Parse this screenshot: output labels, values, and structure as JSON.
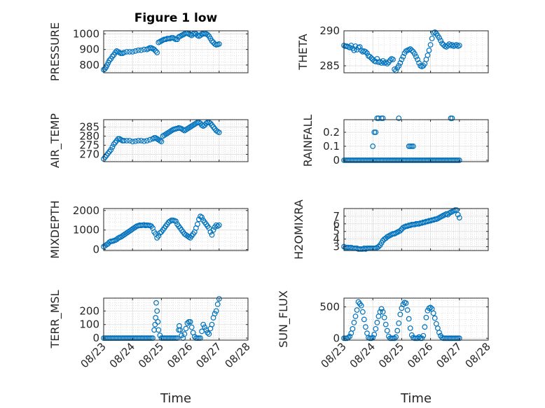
{
  "figure": {
    "title": "Figure 1 low",
    "marker_color": "#0072bd",
    "x_tick_labels": [
      "08/23",
      "08/24",
      "08/25",
      "08/26",
      "08/27",
      "08/28"
    ],
    "x_axis_label": "Time"
  },
  "chart_data": [
    {
      "type": "scatter",
      "ylabel": "PRESSURE",
      "xlim": [
        0,
        5
      ],
      "ylim": [
        750,
        1020
      ],
      "yticks": [
        800,
        900,
        1000
      ],
      "grid": true,
      "x": [
        0.0,
        0.04,
        0.08,
        0.12,
        0.16,
        0.2,
        0.25,
        0.3,
        0.35,
        0.4,
        0.45,
        0.5,
        0.55,
        0.6,
        0.65,
        0.7,
        0.8,
        0.9,
        1.0,
        1.1,
        1.2,
        1.3,
        1.4,
        1.5,
        1.55,
        1.6,
        1.65,
        1.7,
        1.75,
        1.8,
        1.85,
        1.9,
        1.95,
        2.0,
        2.05,
        2.1,
        2.15,
        2.2,
        2.25,
        2.3,
        2.35,
        2.4,
        2.45,
        2.5,
        2.55,
        2.6,
        2.65,
        2.7,
        2.75,
        2.8,
        2.85,
        2.9,
        2.95,
        3.0,
        3.05,
        3.1,
        3.15,
        3.2,
        3.25,
        3.3,
        3.35,
        3.4,
        3.45,
        3.5,
        3.55,
        3.6,
        3.65,
        3.7,
        3.75,
        3.8,
        3.85,
        3.9,
        3.95,
        4.0
      ],
      "y": [
        770,
        775,
        785,
        800,
        815,
        830,
        840,
        855,
        865,
        880,
        890,
        885,
        880,
        875,
        875,
        880,
        885,
        885,
        885,
        890,
        895,
        895,
        900,
        900,
        905,
        910,
        910,
        905,
        900,
        890,
        880,
        945,
        950,
        955,
        960,
        965,
        965,
        970,
        970,
        970,
        975,
        975,
        970,
        965,
        965,
        980,
        985,
        990,
        995,
        1000,
        1005,
        1005,
        1000,
        995,
        990,
        1000,
        1005,
        1000,
        990,
        985,
        990,
        1000,
        1000,
        1005,
        1000,
        995,
        985,
        970,
        955,
        945,
        935,
        930,
        932,
        935
      ]
    },
    {
      "type": "scatter",
      "ylabel": "THETA",
      "xlim": [
        0,
        5
      ],
      "ylim": [
        284,
        290
      ],
      "yticks": [
        285,
        290
      ],
      "grid": true,
      "x": [
        0.0,
        0.05,
        0.1,
        0.15,
        0.2,
        0.25,
        0.3,
        0.35,
        0.4,
        0.45,
        0.5,
        0.55,
        0.6,
        0.65,
        0.7,
        0.75,
        0.8,
        0.85,
        0.9,
        0.95,
        1.0,
        1.05,
        1.1,
        1.15,
        1.2,
        1.25,
        1.3,
        1.35,
        1.4,
        1.45,
        1.5,
        1.55,
        1.6,
        1.65,
        1.7,
        1.75,
        1.8,
        1.85,
        1.9,
        1.95,
        2.0,
        2.05,
        2.1,
        2.15,
        2.2,
        2.25,
        2.3,
        2.35,
        2.4,
        2.45,
        2.5,
        2.55,
        2.6,
        2.65,
        2.7,
        2.75,
        2.8,
        2.85,
        2.9,
        2.95,
        3.0,
        3.05,
        3.1,
        3.15,
        3.2,
        3.25,
        3.3,
        3.35,
        3.4,
        3.45,
        3.5,
        3.55,
        3.6,
        3.65,
        3.7,
        3.75,
        3.8,
        3.85,
        3.9,
        3.95,
        4.0
      ],
      "y": [
        287.9,
        287.8,
        287.8,
        287.7,
        287.6,
        287.9,
        287.5,
        287.2,
        287.8,
        287.3,
        287.6,
        287.7,
        287.2,
        287.0,
        287.1,
        287.0,
        286.8,
        286.4,
        286.3,
        286.1,
        285.9,
        285.7,
        285.6,
        286.0,
        285.5,
        285.6,
        285.4,
        285.7,
        285.4,
        285.5,
        285.3,
        285.5,
        285.8,
        286.0,
        285.9,
        284.5,
        284.3,
        284.7,
        285.0,
        285.4,
        285.9,
        286.3,
        286.8,
        287.1,
        287.2,
        287.3,
        287.4,
        287.2,
        287.0,
        286.7,
        286.3,
        285.9,
        285.4,
        285.0,
        284.9,
        285.0,
        285.3,
        285.9,
        286.5,
        287.2,
        288.0,
        288.9,
        289.7,
        289.8,
        289.6,
        289.3,
        289.0,
        288.6,
        288.2,
        288.0,
        287.8,
        287.7,
        287.9,
        288.1,
        287.9,
        288.0,
        287.8,
        287.9,
        288.0,
        287.8,
        287.9
      ]
    },
    {
      "type": "scatter",
      "ylabel": "AIR_TEMP",
      "xlim": [
        0,
        5
      ],
      "ylim": [
        266,
        289
      ],
      "yticks": [
        270,
        275,
        280,
        285
      ],
      "grid": true,
      "x": [
        0.0,
        0.05,
        0.1,
        0.15,
        0.2,
        0.25,
        0.3,
        0.35,
        0.4,
        0.45,
        0.5,
        0.55,
        0.6,
        0.65,
        0.7,
        0.8,
        0.9,
        1.0,
        1.1,
        1.2,
        1.3,
        1.4,
        1.5,
        1.6,
        1.7,
        1.75,
        1.8,
        1.85,
        1.9,
        1.95,
        2.0,
        2.05,
        2.1,
        2.15,
        2.2,
        2.25,
        2.3,
        2.35,
        2.4,
        2.45,
        2.5,
        2.55,
        2.6,
        2.65,
        2.7,
        2.75,
        2.8,
        2.85,
        2.9,
        2.95,
        3.0,
        3.05,
        3.1,
        3.15,
        3.2,
        3.25,
        3.3,
        3.35,
        3.4,
        3.45,
        3.5,
        3.55,
        3.6,
        3.65,
        3.7,
        3.75,
        3.8,
        3.85,
        3.9,
        3.95,
        4.0
      ],
      "y": [
        267.5,
        268.5,
        269.5,
        270.5,
        271.5,
        272.5,
        274,
        275.5,
        276.5,
        277.5,
        278.5,
        278.5,
        278,
        277.5,
        277.5,
        277.5,
        277.5,
        277,
        277.2,
        277.5,
        277.5,
        277.2,
        277.5,
        278,
        278.5,
        279,
        279,
        278.5,
        278,
        277.5,
        277,
        280,
        280.5,
        281,
        281.5,
        282,
        282.5,
        283,
        283.5,
        283.8,
        284,
        284.2,
        284.5,
        284.3,
        284,
        283.5,
        283,
        283.5,
        284,
        284.5,
        285,
        285.5,
        286,
        286.5,
        287,
        287.5,
        287.5,
        287,
        286,
        285.5,
        286,
        287,
        287.5,
        287.5,
        287,
        286,
        285,
        284,
        283,
        282.5,
        282
      ]
    },
    {
      "type": "scatter",
      "ylabel": "RAINFALL",
      "xlim": [
        0,
        5
      ],
      "ylim": [
        -0.01,
        0.29
      ],
      "yticks": [
        0,
        0.1,
        0.2
      ],
      "grid": true,
      "x": [
        0.0,
        0.05,
        0.1,
        0.15,
        0.2,
        0.25,
        0.3,
        0.35,
        0.4,
        0.45,
        0.5,
        0.55,
        0.6,
        0.65,
        0.7,
        0.75,
        0.8,
        0.85,
        0.9,
        0.95,
        1.0,
        1.05,
        1.1,
        1.15,
        1.2,
        1.25,
        1.3,
        1.35,
        1.4,
        1.45,
        1.5,
        1.55,
        1.6,
        1.65,
        1.7,
        1.75,
        1.8,
        1.85,
        1.9,
        1.95,
        2.0,
        2.05,
        2.1,
        2.15,
        2.2,
        2.25,
        2.3,
        2.35,
        2.4,
        2.45,
        2.5,
        2.55,
        2.6,
        2.65,
        2.7,
        2.75,
        2.8,
        2.85,
        2.9,
        2.95,
        3.0,
        3.05,
        3.1,
        3.15,
        3.2,
        3.25,
        3.3,
        3.35,
        3.4,
        3.45,
        3.5,
        3.55,
        3.6,
        3.65,
        3.7,
        3.75,
        3.8,
        3.85,
        3.9,
        3.95,
        4.0,
        1.0,
        1.05,
        1.1,
        1.15,
        1.2,
        1.3,
        1.35,
        1.9,
        2.25,
        2.3,
        2.35,
        2.4,
        3.7,
        3.75
      ],
      "y": [
        0,
        0,
        0,
        0,
        0,
        0,
        0,
        0,
        0,
        0,
        0,
        0,
        0,
        0,
        0,
        0,
        0,
        0,
        0,
        0,
        0,
        0,
        0,
        0,
        0,
        0,
        0,
        0,
        0,
        0,
        0,
        0,
        0,
        0,
        0,
        0,
        0,
        0,
        0,
        0,
        0,
        0,
        0,
        0,
        0,
        0,
        0,
        0,
        0,
        0,
        0,
        0,
        0,
        0,
        0,
        0,
        0,
        0,
        0,
        0,
        0,
        0,
        0,
        0,
        0,
        0,
        0,
        0,
        0,
        0,
        0,
        0,
        0,
        0,
        0,
        0,
        0,
        0,
        0,
        0,
        0,
        0.1,
        0.2,
        0.2,
        0.3,
        0.3,
        0.3,
        0.3,
        0.3,
        0.1,
        0.1,
        0.1,
        0.1,
        0.3,
        0.3
      ]
    },
    {
      "type": "scatter",
      "ylabel": "MIXDEPTH",
      "xlim": [
        0,
        5
      ],
      "ylim": [
        -50,
        2100
      ],
      "yticks": [
        0,
        1000,
        2000
      ],
      "grid": true,
      "x": [
        0.0,
        0.05,
        0.1,
        0.15,
        0.2,
        0.25,
        0.3,
        0.35,
        0.4,
        0.45,
        0.5,
        0.55,
        0.6,
        0.65,
        0.7,
        0.75,
        0.8,
        0.85,
        0.9,
        0.95,
        1.0,
        1.05,
        1.1,
        1.15,
        1.2,
        1.25,
        1.3,
        1.35,
        1.4,
        1.45,
        1.5,
        1.55,
        1.6,
        1.65,
        1.7,
        1.75,
        1.8,
        1.85,
        1.9,
        1.95,
        2.0,
        2.05,
        2.1,
        2.15,
        2.2,
        2.25,
        2.3,
        2.35,
        2.4,
        2.45,
        2.5,
        2.55,
        2.6,
        2.65,
        2.7,
        2.75,
        2.8,
        2.85,
        2.9,
        2.95,
        3.0,
        3.05,
        3.1,
        3.15,
        3.2,
        3.25,
        3.3,
        3.35,
        3.4,
        3.45,
        3.5,
        3.55,
        3.6,
        3.65,
        3.7,
        3.75,
        3.8,
        3.85,
        3.9,
        3.95,
        4.0
      ],
      "y": [
        150,
        200,
        250,
        300,
        380,
        420,
        430,
        450,
        480,
        520,
        580,
        620,
        650,
        700,
        750,
        800,
        850,
        900,
        950,
        1000,
        1050,
        1100,
        1150,
        1200,
        1220,
        1250,
        1230,
        1250,
        1260,
        1230,
        1250,
        1240,
        1230,
        1200,
        1100,
        900,
        800,
        600,
        700,
        850,
        900,
        1000,
        1100,
        1200,
        1300,
        1400,
        1450,
        1500,
        1500,
        1480,
        1450,
        1300,
        1200,
        1100,
        1000,
        900,
        800,
        750,
        700,
        650,
        600,
        700,
        800,
        900,
        1100,
        1300,
        1550,
        1700,
        1650,
        1500,
        1400,
        1300,
        1200,
        1100,
        900,
        750,
        1000,
        1150,
        1250,
        1200,
        1250
      ]
    },
    {
      "type": "scatter",
      "ylabel": "H2OMIXRA",
      "xlim": [
        0,
        5
      ],
      "ylim": [
        2.5,
        8
      ],
      "yticks": [
        3,
        4,
        5,
        6,
        7
      ],
      "grid": true,
      "x": [
        0.0,
        0.05,
        0.1,
        0.15,
        0.2,
        0.25,
        0.3,
        0.35,
        0.4,
        0.45,
        0.5,
        0.55,
        0.6,
        0.65,
        0.7,
        0.75,
        0.8,
        0.85,
        0.9,
        0.95,
        1.0,
        1.05,
        1.1,
        1.15,
        1.2,
        1.25,
        1.3,
        1.35,
        1.4,
        1.45,
        1.5,
        1.55,
        1.6,
        1.65,
        1.7,
        1.75,
        1.8,
        1.85,
        1.9,
        1.95,
        2.0,
        2.05,
        2.1,
        2.15,
        2.2,
        2.25,
        2.3,
        2.35,
        2.4,
        2.45,
        2.5,
        2.55,
        2.6,
        2.65,
        2.7,
        2.75,
        2.8,
        2.85,
        2.9,
        2.95,
        3.0,
        3.05,
        3.1,
        3.15,
        3.2,
        3.25,
        3.3,
        3.35,
        3.4,
        3.45,
        3.5,
        3.55,
        3.6,
        3.65,
        3.7,
        3.75,
        3.8,
        3.85,
        3.9,
        3.95,
        4.0
      ],
      "y": [
        3.0,
        2.9,
        2.9,
        2.9,
        2.8,
        2.9,
        2.8,
        2.8,
        2.8,
        2.8,
        2.7,
        2.7,
        2.7,
        2.7,
        2.8,
        2.7,
        2.8,
        2.8,
        2.8,
        2.8,
        2.8,
        2.8,
        2.8,
        2.9,
        3.0,
        3.2,
        3.5,
        3.8,
        4.0,
        4.1,
        4.3,
        4.4,
        4.5,
        4.6,
        4.7,
        4.7,
        4.8,
        4.9,
        5.0,
        5.1,
        5.3,
        5.5,
        5.6,
        5.7,
        5.7,
        5.8,
        5.8,
        5.9,
        5.9,
        5.9,
        6.0,
        6.0,
        6.0,
        6.1,
        6.1,
        6.2,
        6.2,
        6.3,
        6.3,
        6.4,
        6.4,
        6.5,
        6.5,
        6.6,
        6.6,
        6.7,
        6.8,
        6.9,
        7.0,
        7.1,
        7.2,
        7.3,
        7.2,
        7.4,
        7.5,
        7.6,
        7.7,
        7.8,
        7.8,
        7.2,
        6.8
      ]
    },
    {
      "type": "scatter",
      "ylabel": "TERR_MSL",
      "xlim": [
        0,
        5
      ],
      "ylim": [
        -15,
        295
      ],
      "yticks": [
        0,
        100,
        200
      ],
      "grid": true,
      "x": [
        0.0,
        0.05,
        0.1,
        0.15,
        0.2,
        0.25,
        0.3,
        0.35,
        0.4,
        0.45,
        0.5,
        0.55,
        0.6,
        0.65,
        0.7,
        0.75,
        0.8,
        0.85,
        0.9,
        0.95,
        1.0,
        1.05,
        1.1,
        1.15,
        1.2,
        1.25,
        1.3,
        1.35,
        1.4,
        1.45,
        1.5,
        1.55,
        1.6,
        1.65,
        1.7,
        1.75,
        1.78,
        1.8,
        1.82,
        1.85,
        1.88,
        1.9,
        1.95,
        2.0,
        2.05,
        2.1,
        2.15,
        2.2,
        2.25,
        2.3,
        2.35,
        2.4,
        2.45,
        2.5,
        2.55,
        2.6,
        2.62,
        2.65,
        2.7,
        2.75,
        2.8,
        2.85,
        2.9,
        2.95,
        3.0,
        3.05,
        3.1,
        3.15,
        3.2,
        3.25,
        3.3,
        3.35,
        3.4,
        3.45,
        3.5,
        3.55,
        3.6,
        3.65,
        3.7,
        3.75,
        3.8,
        3.85,
        3.9,
        3.95,
        4.0
      ],
      "y": [
        0,
        0,
        0,
        0,
        0,
        0,
        0,
        0,
        0,
        0,
        0,
        0,
        0,
        0,
        0,
        0,
        0,
        0,
        0,
        0,
        0,
        0,
        0,
        0,
        0,
        0,
        0,
        0,
        0,
        0,
        0,
        0,
        0,
        0,
        0,
        60,
        100,
        150,
        260,
        200,
        120,
        60,
        20,
        0,
        0,
        0,
        0,
        0,
        0,
        0,
        0,
        0,
        0,
        0,
        0,
        60,
        90,
        60,
        20,
        0,
        30,
        70,
        110,
        120,
        120,
        80,
        40,
        10,
        0,
        0,
        0,
        0,
        50,
        100,
        80,
        60,
        40,
        30,
        70,
        100,
        150,
        180,
        200,
        250,
        290
      ]
    },
    {
      "type": "scatter",
      "ylabel": "SUN_FLUX",
      "xlim": [
        0,
        5
      ],
      "ylim": [
        -30,
        640
      ],
      "yticks": [
        0,
        500
      ],
      "grid": true,
      "x": [
        0.0,
        0.05,
        0.1,
        0.15,
        0.2,
        0.25,
        0.3,
        0.35,
        0.4,
        0.45,
        0.5,
        0.55,
        0.6,
        0.65,
        0.7,
        0.75,
        0.8,
        0.85,
        0.9,
        0.95,
        1.0,
        1.05,
        1.1,
        1.15,
        1.2,
        1.25,
        1.3,
        1.35,
        1.4,
        1.45,
        1.5,
        1.55,
        1.6,
        1.65,
        1.7,
        1.75,
        1.8,
        1.85,
        1.9,
        1.95,
        2.0,
        2.05,
        2.1,
        2.15,
        2.2,
        2.25,
        2.3,
        2.35,
        2.4,
        2.45,
        2.5,
        2.55,
        2.6,
        2.65,
        2.7,
        2.75,
        2.8,
        2.85,
        2.9,
        2.95,
        3.0,
        3.05,
        3.1,
        3.15,
        3.2,
        3.25,
        3.3,
        3.35,
        3.4,
        3.45,
        3.5,
        3.55,
        3.6,
        3.65,
        3.7,
        3.75,
        3.8,
        3.85,
        3.9,
        3.95,
        4.0
      ],
      "y": [
        0,
        0,
        0,
        10,
        30,
        80,
        150,
        250,
        350,
        450,
        580,
        550,
        520,
        420,
        300,
        180,
        80,
        10,
        0,
        0,
        10,
        60,
        150,
        250,
        350,
        420,
        470,
        420,
        330,
        220,
        120,
        30,
        0,
        0,
        0,
        0,
        20,
        120,
        240,
        380,
        480,
        540,
        570,
        560,
        450,
        310,
        160,
        50,
        10,
        0,
        0,
        0,
        20,
        0,
        0,
        40,
        180,
        330,
        440,
        480,
        490,
        470,
        400,
        320,
        230,
        160,
        90,
        40,
        10,
        0,
        0,
        0,
        0,
        0,
        0,
        0,
        0,
        0,
        0,
        0,
        0
      ]
    }
  ]
}
